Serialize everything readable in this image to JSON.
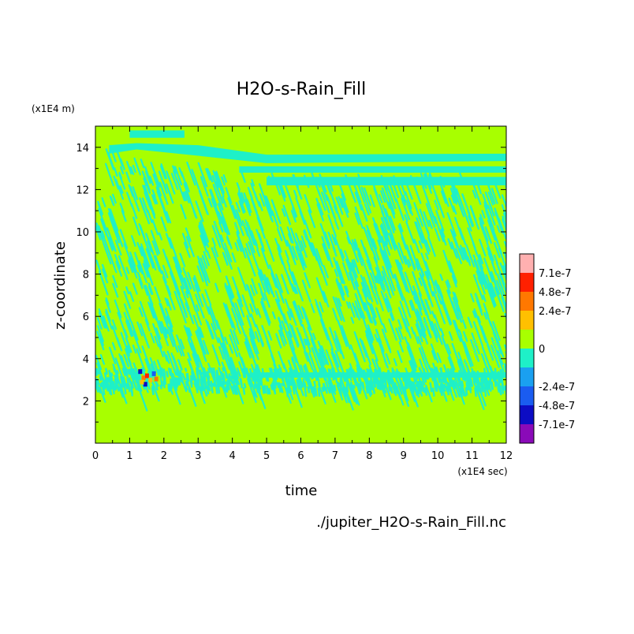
{
  "chart_data": {
    "type": "heatmap",
    "title": "H2O-s-Rain_Fill",
    "xlabel": "time",
    "ylabel": "z-coordinate",
    "x_unit": "(x1E4 sec)",
    "y_unit": "(x1E4 m)",
    "source_file": "./jupiter_H2O-s-Rain_Fill.nc",
    "xlim": [
      0,
      12
    ],
    "ylim": [
      0,
      15
    ],
    "x_ticks": [
      "0",
      "1",
      "2",
      "3",
      "4",
      "5",
      "6",
      "7",
      "8",
      "9",
      "10",
      "11",
      "12"
    ],
    "y_ticks": [
      "2",
      "4",
      "6",
      "8",
      "10",
      "12",
      "14"
    ],
    "colorbar": {
      "levels": [
        "-7.1e-7",
        "-4.8e-7",
        "-2.4e-7",
        "0",
        "2.4e-7",
        "4.8e-7",
        "7.1e-7"
      ],
      "colors": [
        "#8a0ab8",
        "#0c0cc4",
        "#1a5cf0",
        "#1aa0f0",
        "#1ef0c8",
        "#a8ff00",
        "#ffc000",
        "#ff7800",
        "#ff2000",
        "#ffb0b0"
      ]
    },
    "background_color": "#a8ff00",
    "streak_color": "#1ef0c8"
  }
}
